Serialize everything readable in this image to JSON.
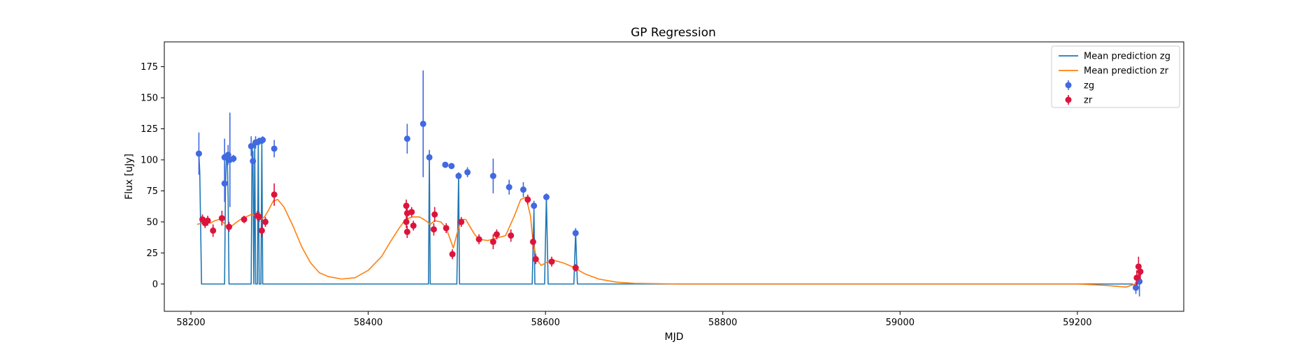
{
  "chart_data": {
    "type": "scatter",
    "title": "GP Regression",
    "xlabel": "MJD",
    "ylabel": "Flux [uJy]",
    "xlim": [
      58170,
      59320
    ],
    "ylim": [
      -22,
      195
    ],
    "xticks": [
      58200,
      58400,
      58600,
      58800,
      59000,
      59200
    ],
    "yticks": [
      0,
      25,
      50,
      75,
      100,
      125,
      150,
      175
    ],
    "grid": false,
    "legend_position": "top-right",
    "colors": {
      "zg_line": "#1f77b4",
      "zr_line": "#ff7f0e",
      "zg_points": "#4169e1",
      "zr_points": "#dc143c"
    },
    "legend": [
      {
        "label": "Mean prediction zg",
        "kind": "line",
        "series": "zg_line"
      },
      {
        "label": "Mean prediction zr",
        "kind": "line",
        "series": "zr_line"
      },
      {
        "label": "zg",
        "kind": "point",
        "series": "zg_points"
      },
      {
        "label": "zr",
        "kind": "point",
        "series": "zr_points"
      }
    ],
    "series": [
      {
        "name": "Mean prediction zg",
        "kind": "line",
        "color": "#1f77b4",
        "points": [
          [
            58209,
            105
          ],
          [
            58210,
            90
          ],
          [
            58212,
            0
          ],
          [
            58238,
            0
          ],
          [
            58239,
            80
          ],
          [
            58240,
            102
          ],
          [
            58241,
            104
          ],
          [
            58242,
            70
          ],
          [
            58243,
            0
          ],
          [
            58268,
            0
          ],
          [
            58269,
            110
          ],
          [
            58270,
            98
          ],
          [
            58271,
            0
          ],
          [
            58272,
            113
          ],
          [
            58273,
            0
          ],
          [
            58275,
            0
          ],
          [
            58276,
            115
          ],
          [
            58277,
            0
          ],
          [
            58279,
            0
          ],
          [
            58280,
            116
          ],
          [
            58281,
            0
          ],
          [
            58468,
            0
          ],
          [
            58469,
            102
          ],
          [
            58470,
            0
          ],
          [
            58500,
            0
          ],
          [
            58502,
            87
          ],
          [
            58503,
            0
          ],
          [
            58585,
            0
          ],
          [
            58587,
            60
          ],
          [
            58588,
            0
          ],
          [
            58599,
            0
          ],
          [
            58601,
            70
          ],
          [
            58603,
            0
          ],
          [
            58632,
            0
          ],
          [
            58634,
            42
          ],
          [
            58636,
            0
          ],
          [
            59262,
            0
          ],
          [
            59266,
            -2
          ],
          [
            59270,
            2
          ]
        ]
      },
      {
        "name": "Mean prediction zr",
        "kind": "line",
        "color": "#ff7f0e",
        "points": [
          [
            58207,
            48
          ],
          [
            58212,
            49
          ],
          [
            58217,
            50
          ],
          [
            58222,
            49
          ],
          [
            58227,
            51
          ],
          [
            58232,
            52
          ],
          [
            58236,
            50
          ],
          [
            58240,
            47
          ],
          [
            58245,
            46
          ],
          [
            58250,
            49
          ],
          [
            58256,
            52
          ],
          [
            58262,
            54
          ],
          [
            58268,
            56
          ],
          [
            58274,
            55
          ],
          [
            58278,
            52
          ],
          [
            58283,
            54
          ],
          [
            58288,
            60
          ],
          [
            58293,
            67
          ],
          [
            58298,
            68
          ],
          [
            58305,
            62
          ],
          [
            58315,
            47
          ],
          [
            58325,
            30
          ],
          [
            58335,
            17
          ],
          [
            58345,
            9
          ],
          [
            58355,
            6
          ],
          [
            58370,
            4
          ],
          [
            58385,
            5
          ],
          [
            58400,
            11
          ],
          [
            58415,
            22
          ],
          [
            58425,
            34
          ],
          [
            58435,
            45
          ],
          [
            58442,
            52
          ],
          [
            58450,
            54
          ],
          [
            58458,
            54
          ],
          [
            58465,
            51
          ],
          [
            58470,
            48
          ],
          [
            58475,
            51
          ],
          [
            58482,
            50
          ],
          [
            58488,
            45
          ],
          [
            58492,
            37
          ],
          [
            58496,
            29
          ],
          [
            58500,
            40
          ],
          [
            58505,
            52
          ],
          [
            58510,
            52
          ],
          [
            58515,
            46
          ],
          [
            58520,
            40
          ],
          [
            58525,
            36
          ],
          [
            58535,
            35
          ],
          [
            58545,
            37
          ],
          [
            58555,
            39
          ],
          [
            58565,
            55
          ],
          [
            58572,
            68
          ],
          [
            58578,
            70
          ],
          [
            58583,
            55
          ],
          [
            58586,
            34
          ],
          [
            58590,
            20
          ],
          [
            58595,
            15
          ],
          [
            58603,
            18
          ],
          [
            58610,
            19
          ],
          [
            58620,
            17
          ],
          [
            58630,
            14
          ],
          [
            58645,
            8
          ],
          [
            58660,
            4
          ],
          [
            58680,
            1.5
          ],
          [
            58700,
            0.5
          ],
          [
            58750,
            0
          ],
          [
            59000,
            0
          ],
          [
            59200,
            0
          ],
          [
            59230,
            -1
          ],
          [
            59255,
            -2.5
          ],
          [
            59265,
            0
          ],
          [
            59272,
            8
          ]
        ]
      },
      {
        "name": "zg",
        "kind": "errorbar",
        "color": "#4169e1",
        "points": [
          {
            "x": 58209,
            "y": 105,
            "err": 17
          },
          {
            "x": 58238,
            "y": 81,
            "err": 15
          },
          {
            "x": 58238,
            "y": 102,
            "err": 15
          },
          {
            "x": 58242,
            "y": 104,
            "err": 8
          },
          {
            "x": 58244,
            "y": 100,
            "err": 38
          },
          {
            "x": 58248,
            "y": 101,
            "err": 3
          },
          {
            "x": 58268,
            "y": 111,
            "err": 8
          },
          {
            "x": 58270,
            "y": 99,
            "err": 8
          },
          {
            "x": 58273,
            "y": 114,
            "err": 5
          },
          {
            "x": 58277,
            "y": 115,
            "err": 3
          },
          {
            "x": 58281,
            "y": 116,
            "err": 3
          },
          {
            "x": 58294,
            "y": 109,
            "err": 7
          },
          {
            "x": 58444,
            "y": 117,
            "err": 12
          },
          {
            "x": 58462,
            "y": 129,
            "err": 43
          },
          {
            "x": 58469,
            "y": 102,
            "err": 6
          },
          {
            "x": 58487,
            "y": 96,
            "err": 2
          },
          {
            "x": 58494,
            "y": 95,
            "err": 2
          },
          {
            "x": 58502,
            "y": 87,
            "err": 3
          },
          {
            "x": 58512,
            "y": 90,
            "err": 4
          },
          {
            "x": 58541,
            "y": 87,
            "err": 14
          },
          {
            "x": 58559,
            "y": 78,
            "err": 6
          },
          {
            "x": 58575,
            "y": 76,
            "err": 6
          },
          {
            "x": 58587,
            "y": 63,
            "err": 4
          },
          {
            "x": 58601,
            "y": 70,
            "err": 3
          },
          {
            "x": 58634,
            "y": 41,
            "err": 4
          },
          {
            "x": 59266,
            "y": -3,
            "err": 5
          },
          {
            "x": 59270,
            "y": 2,
            "err": 12
          }
        ]
      },
      {
        "name": "zr",
        "kind": "errorbar",
        "color": "#dc143c",
        "points": [
          {
            "x": 58213,
            "y": 52,
            "err": 4
          },
          {
            "x": 58216,
            "y": 49,
            "err": 4
          },
          {
            "x": 58219,
            "y": 51,
            "err": 4
          },
          {
            "x": 58225,
            "y": 43,
            "err": 5
          },
          {
            "x": 58235,
            "y": 53,
            "err": 6
          },
          {
            "x": 58243,
            "y": 46,
            "err": 4
          },
          {
            "x": 58260,
            "y": 52,
            "err": 3
          },
          {
            "x": 58275,
            "y": 55,
            "err": 4
          },
          {
            "x": 58277,
            "y": 54,
            "err": 4
          },
          {
            "x": 58280,
            "y": 43,
            "err": 5
          },
          {
            "x": 58284,
            "y": 50,
            "err": 4
          },
          {
            "x": 58294,
            "y": 72,
            "err": 9
          },
          {
            "x": 58443,
            "y": 63,
            "err": 5
          },
          {
            "x": 58444,
            "y": 57,
            "err": 5
          },
          {
            "x": 58443,
            "y": 50,
            "err": 5
          },
          {
            "x": 58444,
            "y": 42,
            "err": 5
          },
          {
            "x": 58449,
            "y": 58,
            "err": 4
          },
          {
            "x": 58451,
            "y": 47,
            "err": 4
          },
          {
            "x": 58475,
            "y": 56,
            "err": 6
          },
          {
            "x": 58474,
            "y": 44,
            "err": 5
          },
          {
            "x": 58488,
            "y": 45,
            "err": 4
          },
          {
            "x": 58495,
            "y": 24,
            "err": 4
          },
          {
            "x": 58505,
            "y": 50,
            "err": 4
          },
          {
            "x": 58525,
            "y": 36,
            "err": 4
          },
          {
            "x": 58541,
            "y": 34,
            "err": 6
          },
          {
            "x": 58545,
            "y": 40,
            "err": 4
          },
          {
            "x": 58561,
            "y": 39,
            "err": 5
          },
          {
            "x": 58580,
            "y": 68,
            "err": 4
          },
          {
            "x": 58586,
            "y": 34,
            "err": 6
          },
          {
            "x": 58589,
            "y": 20,
            "err": 4
          },
          {
            "x": 58607,
            "y": 18,
            "err": 4
          },
          {
            "x": 58634,
            "y": 13,
            "err": 3
          },
          {
            "x": 59267,
            "y": 5,
            "err": 6
          },
          {
            "x": 59269,
            "y": 14,
            "err": 8
          },
          {
            "x": 59271,
            "y": 10,
            "err": 6
          }
        ]
      }
    ]
  }
}
